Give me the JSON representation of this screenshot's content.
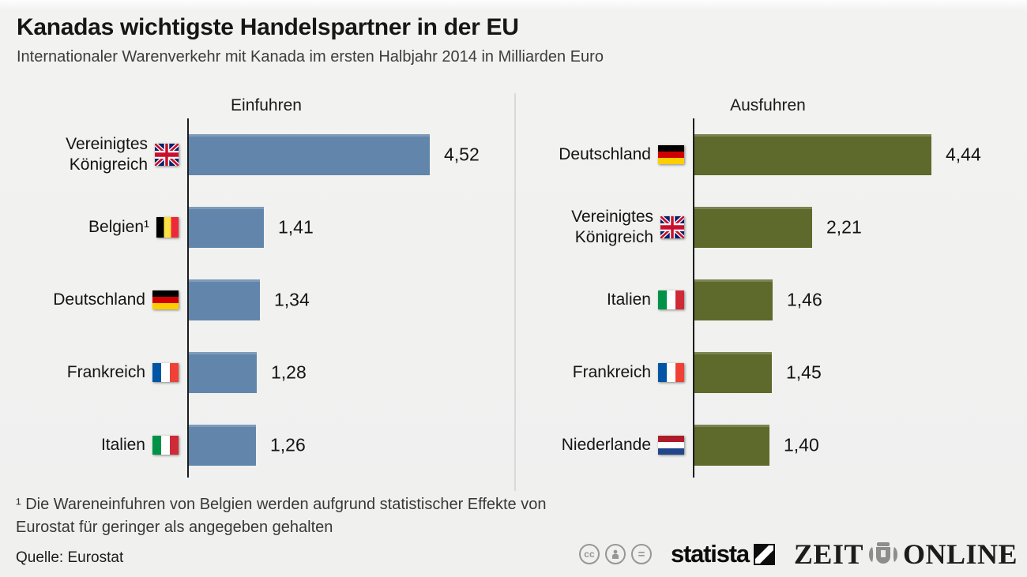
{
  "header": {
    "title": "Kanadas wichtigste Handelspartner in der EU",
    "subtitle": "Internationaler Warenverkehr mit Kanada im ersten Halbjahr 2014 in Milliarden Euro"
  },
  "chart_data": [
    {
      "type": "bar",
      "orientation": "horizontal",
      "title": "Einfuhren",
      "unit": "Milliarden Euro",
      "bar_color": "#6286ab",
      "categories": [
        "Vereinigtes Königreich",
        "Belgien¹",
        "Deutschland",
        "Frankreich",
        "Italien"
      ],
      "flags": [
        "uk",
        "belgium",
        "germany",
        "france",
        "italy"
      ],
      "values": [
        4.52,
        1.41,
        1.34,
        1.28,
        1.26
      ],
      "value_labels": [
        "4,52",
        "1,41",
        "1,34",
        "1,28",
        "1,26"
      ],
      "grid": false,
      "legend": false
    },
    {
      "type": "bar",
      "orientation": "horizontal",
      "title": "Ausfuhren",
      "unit": "Milliarden Euro",
      "bar_color": "#5e6a2c",
      "categories": [
        "Deutschland",
        "Vereinigtes Königreich",
        "Italien",
        "Frankreich",
        "Niederlande"
      ],
      "flags": [
        "germany",
        "uk",
        "italy",
        "france",
        "netherlands"
      ],
      "values": [
        4.44,
        2.21,
        1.46,
        1.45,
        1.4
      ],
      "value_labels": [
        "4,44",
        "2,21",
        "1,46",
        "1,45",
        "1,40"
      ],
      "grid": false,
      "legend": false
    }
  ],
  "footnote": {
    "lines": [
      "¹ Die Wareneinfuhren von Belgien werden aufgrund statistischer Effekte von",
      "Eurostat für geringer als angegeben gehalten"
    ]
  },
  "source": "Quelle: Eurostat",
  "footer": {
    "license_icons": [
      "cc",
      "by",
      "nd"
    ],
    "statista_label": "statista",
    "zeit_label": "ZEIT",
    "online_label": "ONLINE"
  },
  "colors": {
    "background": "#f0f0ef",
    "import_bar": "#6286ab",
    "export_bar": "#5e6a2c",
    "axis": "#1c1c1c",
    "divider": "#dadada"
  }
}
